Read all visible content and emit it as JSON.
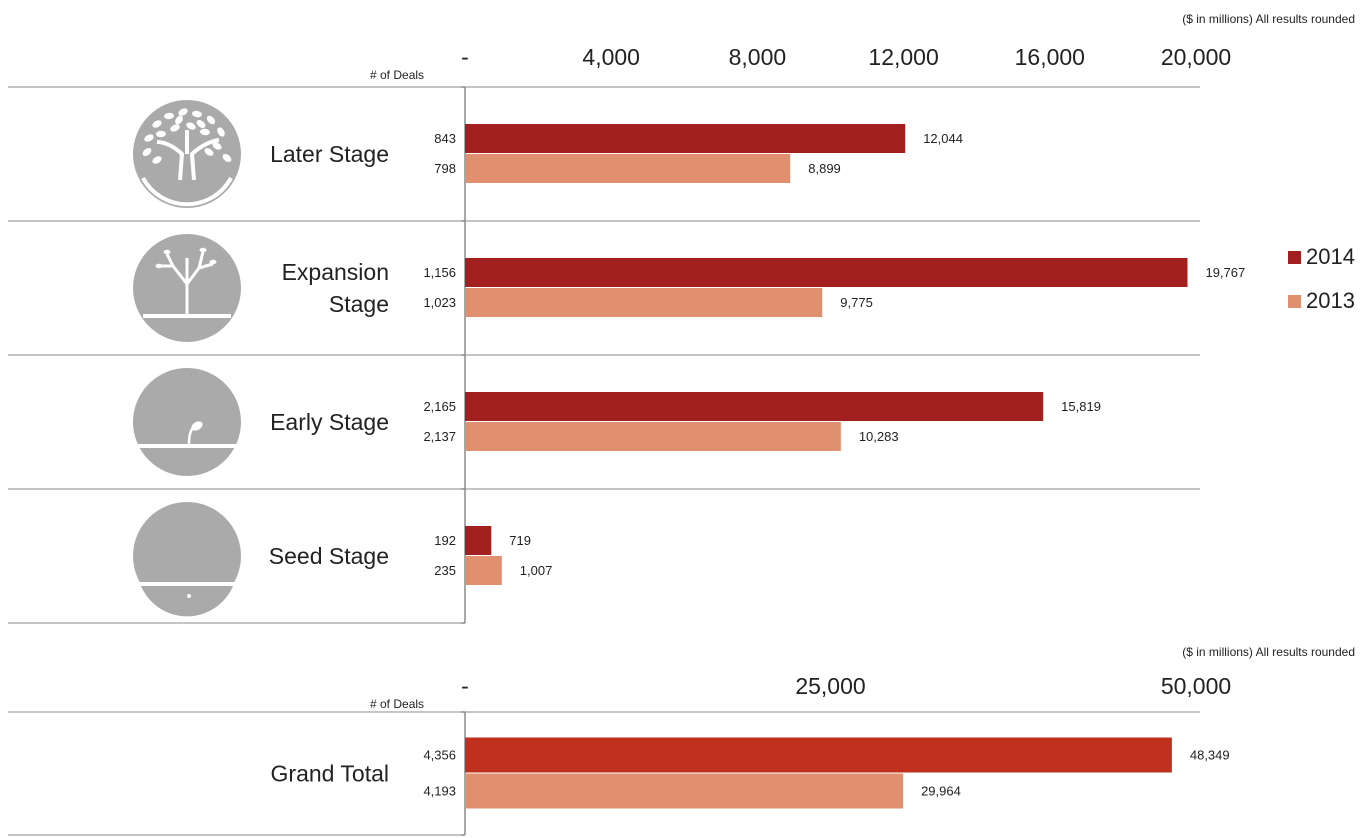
{
  "unit_note": "($ in millions) All results rounded",
  "deals_header": "# of  Deals",
  "colors": {
    "y2014": "#a32020",
    "y2013": "#e0906e",
    "total2014": "#c0301e",
    "icon": "#aaaaaa",
    "axis": "#8a8a8a"
  },
  "legend": [
    {
      "label": "2014",
      "color": "#a32020"
    },
    {
      "label": "2013",
      "color": "#e0906e"
    }
  ],
  "chart_data": [
    {
      "type": "bar",
      "orientation": "horizontal",
      "xlim": [
        0,
        20000
      ],
      "tick_labels": [
        "-",
        "4,000",
        "8,000",
        "12,000",
        "16,000",
        "20,000"
      ],
      "categories": [
        {
          "label_lines": [
            "Later Stage"
          ],
          "icon": "mature-tree-icon",
          "deals": [
            "843",
            "798"
          ],
          "value_labels": [
            "12,044",
            "8,899"
          ]
        },
        {
          "label_lines": [
            "Expansion",
            "Stage"
          ],
          "icon": "young-tree-icon",
          "deals": [
            "1,156",
            "1,023"
          ],
          "value_labels": [
            "19,767",
            "9,775"
          ]
        },
        {
          "label_lines": [
            "Early Stage"
          ],
          "icon": "sprout-icon",
          "deals": [
            "2,165",
            "2,137"
          ],
          "value_labels": [
            "15,819",
            "10,283"
          ]
        },
        {
          "label_lines": [
            "Seed Stage"
          ],
          "icon": "seed-icon",
          "deals": [
            "192",
            "235"
          ],
          "value_labels": [
            "719",
            "1,007"
          ]
        }
      ],
      "series": [
        {
          "name": "2014",
          "values": [
            12044,
            19767,
            15819,
            719
          ]
        },
        {
          "name": "2013",
          "values": [
            8899,
            9775,
            10283,
            1007
          ]
        }
      ]
    },
    {
      "type": "bar",
      "orientation": "horizontal",
      "xlim": [
        0,
        50000
      ],
      "tick_labels": [
        "-",
        "25,000",
        "50,000"
      ],
      "categories": [
        {
          "label_lines": [
            "Grand Total"
          ],
          "deals": [
            "4,356",
            "4,193"
          ],
          "value_labels": [
            "48,349",
            "29,964"
          ]
        }
      ],
      "series": [
        {
          "name": "2014",
          "values": [
            48349
          ]
        },
        {
          "name": "2013",
          "values": [
            29964
          ]
        }
      ]
    }
  ]
}
